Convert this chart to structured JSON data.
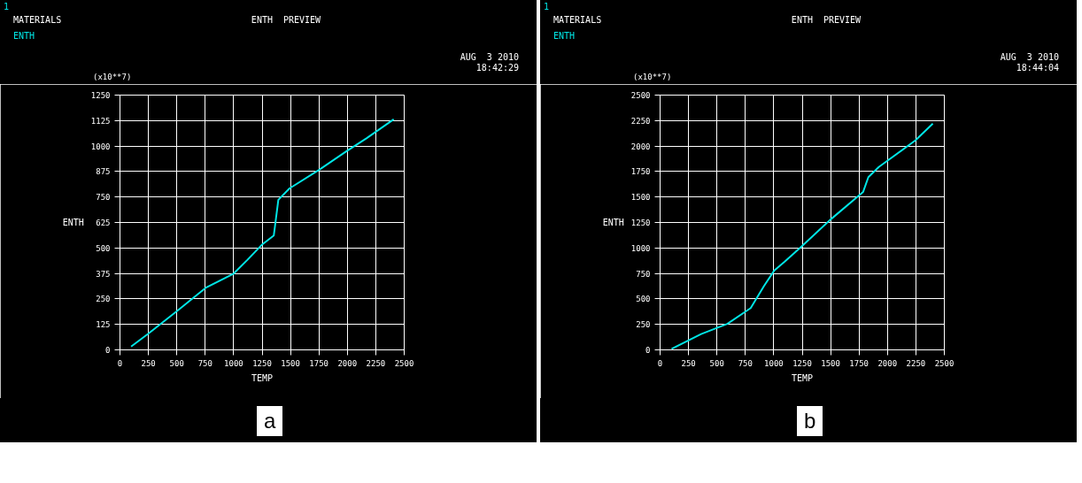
{
  "chart_data": [
    {
      "type": "line",
      "title": "ENTH  PREVIEW",
      "xlabel": "TEMP",
      "ylabel": "ENTH",
      "legend_title": "MATERIALS",
      "legend": "top left",
      "grid": true,
      "annotations": [
        "1",
        "(x10**7)",
        "AUG  3 2010",
        "18:42:29",
        "a"
      ],
      "xlim": [
        0,
        2500
      ],
      "xticks": [
        0,
        250,
        500,
        750,
        1000,
        1250,
        1500,
        1750,
        2000,
        2250,
        2500
      ],
      "ylim": [
        0,
        1250
      ],
      "yticks": [
        0,
        125,
        250,
        375,
        500,
        625,
        750,
        875,
        1000,
        1125,
        1250
      ],
      "series": [
        {
          "name": "ENTH",
          "color": "#00e5e5",
          "x": [
            98,
            246,
            498,
            753,
            1000,
            1122,
            1245,
            1353,
            1393,
            1491,
            1753,
            1999,
            2168,
            2408
          ],
          "values": [
            16,
            78,
            189,
            304,
            374,
            442,
            514,
            561,
            736,
            792,
            884,
            977,
            1038,
            1131
          ]
        }
      ]
    },
    {
      "type": "line",
      "title": "ENTH  PREVIEW",
      "xlabel": "TEMP",
      "ylabel": "ENTH",
      "legend_title": "MATERIALS",
      "legend": "top left",
      "grid": true,
      "annotations": [
        "1",
        "(x10**7)",
        "AUG  3 2010",
        "18:44:04",
        "b"
      ],
      "xlim": [
        0,
        2500
      ],
      "xticks": [
        0,
        250,
        500,
        750,
        1000,
        1250,
        1500,
        1750,
        2000,
        2250,
        2500
      ],
      "ylim": [
        0,
        2500
      ],
      "yticks": [
        0,
        250,
        500,
        750,
        1000,
        1250,
        1500,
        1750,
        2000,
        2250,
        2500
      ],
      "series": [
        {
          "name": "ENTH",
          "color": "#00e5e5",
          "x": [
            101,
            361,
            591,
            797,
            913,
            1005,
            1096,
            1250,
            1495,
            1786,
            1832,
            1924,
            2245,
            2399
          ],
          "values": [
            10,
            155,
            255,
            410,
            625,
            780,
            865,
            1020,
            1275,
            1550,
            1695,
            1795,
            2055,
            2220
          ]
        }
      ]
    }
  ]
}
